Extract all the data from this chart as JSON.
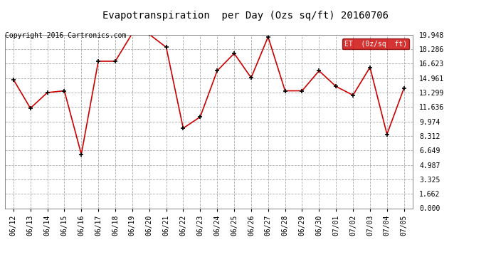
{
  "title": "Evapotranspiration  per Day (Ozs sq/ft) 20160706",
  "copyright": "Copyright 2016 Cartronics.com",
  "legend_label": "ET  (0z/sq  ft)",
  "dates": [
    "06/12",
    "06/13",
    "06/14",
    "06/15",
    "06/16",
    "06/17",
    "06/18",
    "06/19",
    "06/20",
    "06/21",
    "06/22",
    "06/23",
    "06/24",
    "06/25",
    "06/26",
    "06/27",
    "06/28",
    "06/29",
    "06/30",
    "07/01",
    "07/02",
    "07/03",
    "07/04",
    "07/05"
  ],
  "values": [
    14.8,
    11.5,
    13.3,
    13.5,
    6.2,
    16.9,
    16.9,
    20.1,
    20.0,
    18.5,
    9.2,
    10.5,
    15.8,
    17.8,
    15.0,
    19.7,
    13.5,
    13.5,
    15.8,
    14.0,
    13.0,
    16.2,
    8.5,
    13.8
  ],
  "line_color": "#cc0000",
  "marker_color": "#000000",
  "bg_color": "#ffffff",
  "grid_color": "#aaaaaa",
  "yticks": [
    0.0,
    1.662,
    3.325,
    4.987,
    6.649,
    8.312,
    9.974,
    11.636,
    13.299,
    14.961,
    16.623,
    18.286,
    19.948
  ],
  "ylim": [
    0.0,
    19.948
  ],
  "legend_bg": "#cc0000",
  "legend_text_color": "#ffffff",
  "title_fontsize": 10,
  "tick_fontsize": 7,
  "copyright_fontsize": 7
}
